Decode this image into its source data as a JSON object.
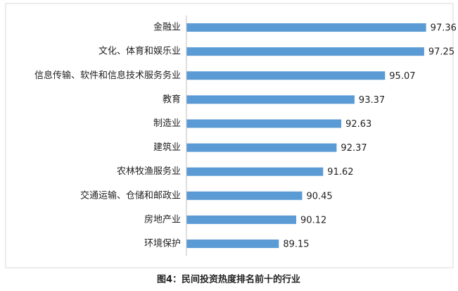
{
  "chart_data": {
    "type": "bar",
    "orientation": "horizontal",
    "title": "图4：民间投资热度排名前十的行业",
    "categories": [
      "金融业",
      "文化、体育和娱乐业",
      "信息传输、软件和信息技术服务务业",
      "教育",
      "制造业",
      "建筑业",
      "农林牧渔服务业",
      "交通运输、仓储和邮政业",
      "房地产业",
      "环境保护"
    ],
    "values": [
      97.36,
      97.25,
      95.07,
      93.37,
      92.63,
      92.37,
      91.62,
      90.45,
      90.12,
      89.15
    ],
    "color": "#5b9bd5",
    "xlim": [
      84,
      98
    ]
  }
}
